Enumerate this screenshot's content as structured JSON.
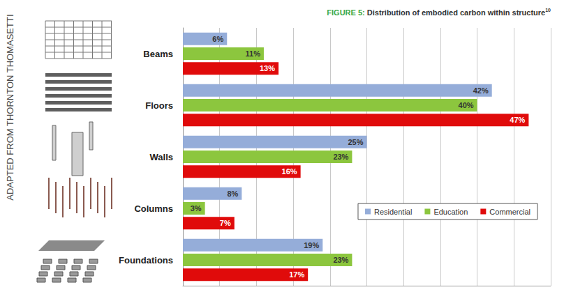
{
  "chart_data": {
    "type": "bar",
    "title": "FIGURE 5: Distribution of embodied carbon within structure",
    "title_ref": "10",
    "annotations": [
      "ADAPTED FROM THORNTON THOMASETTI"
    ],
    "orientation": "horizontal",
    "categories": [
      "Beams",
      "Floors",
      "Walls",
      "Columns",
      "Foundations"
    ],
    "series": [
      {
        "name": "Residential",
        "color": "#95add9",
        "values": [
          6,
          42,
          25,
          8,
          19
        ],
        "value_labels": [
          "6%",
          "42%",
          "25%",
          "8%",
          "19%"
        ]
      },
      {
        "name": "Education",
        "color": "#8cc63e",
        "values": [
          11,
          40,
          23,
          3,
          23
        ],
        "value_labels": [
          "11%",
          "40%",
          "23%",
          "3%",
          "23%"
        ]
      },
      {
        "name": "Commercial",
        "color": "#e00b0b",
        "values": [
          13,
          47,
          16,
          7,
          17
        ],
        "value_labels": [
          "13%",
          "47%",
          "16%",
          "7%",
          "17%"
        ]
      }
    ],
    "xlim": [
      0,
      50
    ],
    "xticks": [
      0,
      5,
      10,
      15,
      20,
      25,
      30,
      35,
      40,
      45,
      50
    ],
    "grid": true,
    "tick_labels": "y",
    "data_labels": true,
    "legend": "right"
  }
}
